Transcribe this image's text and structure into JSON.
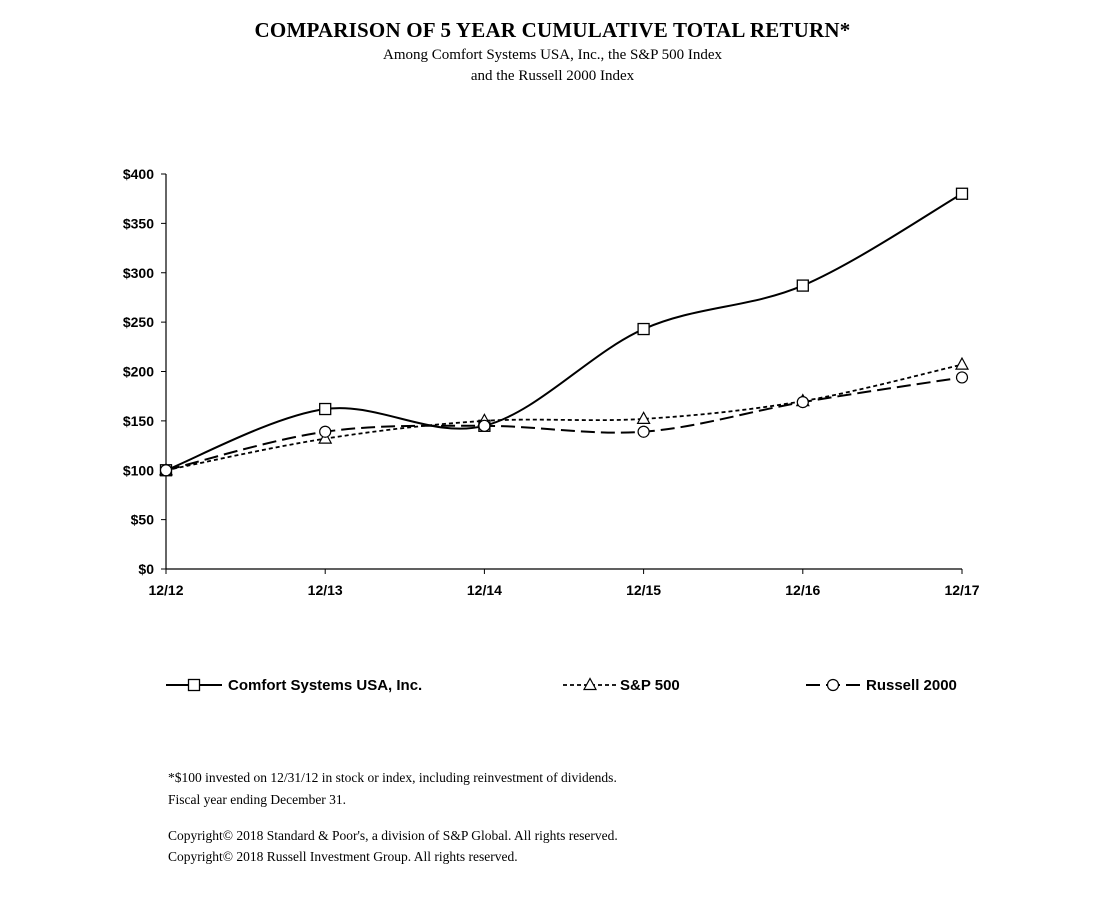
{
  "title": "COMPARISON OF 5 YEAR CUMULATIVE  TOTAL RETURN*",
  "subtitle_line1": "Among Comfort Systems USA, Inc., the S&P 500 Index",
  "subtitle_line2": "and the Russell 2000 Index",
  "notes": {
    "footnote1": "*$100  invested on 12/31/12  in stock or index,  including reinvestment of dividends.",
    "footnote2": "Fiscal year ending December 31.",
    "copyright1": "Copyright© 2018  Standard & Poor's, a division of S&P Global.  All rights reserved.",
    "copyright2": "Copyright© 2018  Russell Investment Group.  All rights reserved."
  },
  "chart_data": {
    "type": "line",
    "categories": [
      "12/12",
      "12/13",
      "12/14",
      "12/15",
      "12/16",
      "12/17"
    ],
    "y_tick_labels": [
      "$0",
      "$50",
      "$100",
      "$150",
      "$200",
      "$250",
      "$300",
      "$350",
      "$400"
    ],
    "ylim": [
      0,
      400
    ],
    "grid": false,
    "legend_position": "bottom",
    "series": [
      {
        "name": "Comfort Systems USA, Inc.",
        "values": [
          100,
          162,
          145,
          243,
          287,
          380
        ],
        "marker": "square",
        "dash": "solid"
      },
      {
        "name": "S&P 500",
        "values": [
          100,
          132,
          150,
          152,
          170,
          207
        ],
        "marker": "triangle",
        "dash": "dotted"
      },
      {
        "name": "Russell 2000",
        "values": [
          100,
          139,
          145,
          139,
          169,
          194
        ],
        "marker": "circle",
        "dash": "longdash"
      }
    ],
    "line_color": "#000000"
  }
}
